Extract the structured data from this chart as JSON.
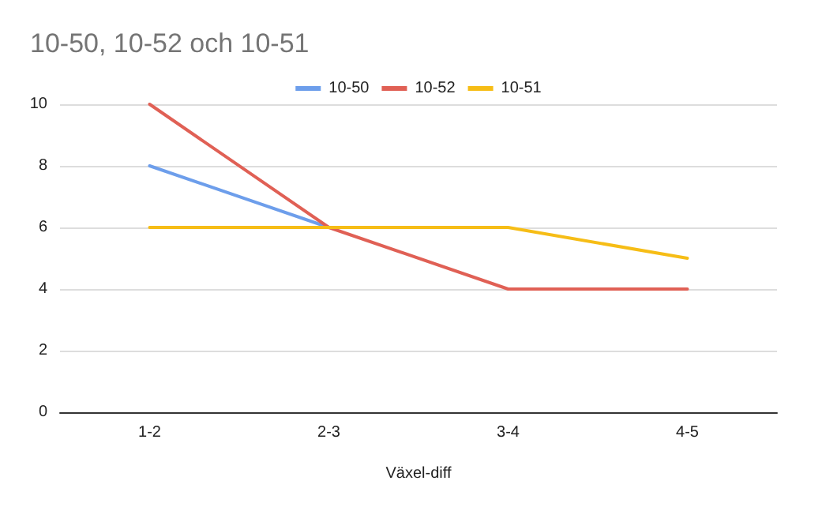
{
  "chart_data": {
    "type": "line",
    "title": "10-50, 10-52 och 10-51",
    "xlabel": "Växel-diff",
    "categories": [
      "1-2",
      "2-3",
      "3-4",
      "4-5"
    ],
    "series": [
      {
        "name": "10-50",
        "color": "#6d9eeb",
        "values": [
          8,
          6,
          null,
          null
        ]
      },
      {
        "name": "10-52",
        "color": "#e06055",
        "values": [
          10,
          6,
          4,
          4
        ]
      },
      {
        "name": "10-51",
        "color": "#f6bd16",
        "values": [
          6,
          6,
          6,
          5
        ]
      }
    ],
    "ylim": [
      0,
      10
    ],
    "yticks": [
      0,
      2,
      4,
      6,
      8,
      10
    ],
    "grid": "y",
    "legend": "top",
    "marker": "none",
    "line_style": "solid"
  }
}
